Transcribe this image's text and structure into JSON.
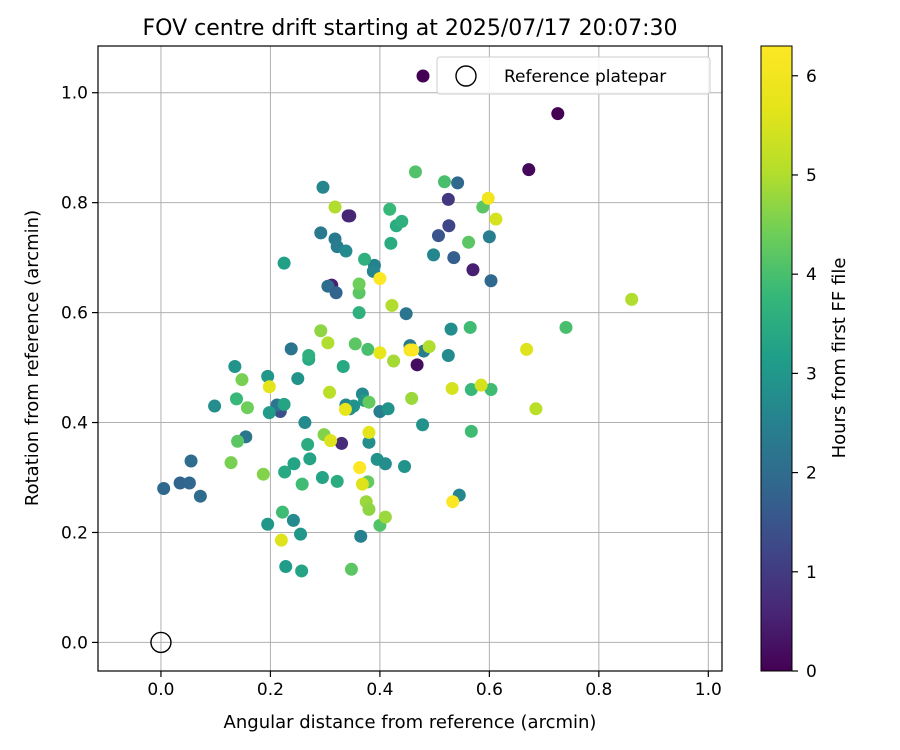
{
  "chart_data": {
    "type": "scatter",
    "title": "FOV centre drift starting at 2025/07/17 20:07:30",
    "xlabel": "Angular distance from reference (arcmin)",
    "ylabel": "Rotation from reference (arcmin)",
    "xlim": [
      -0.115,
      1.025
    ],
    "ylim": [
      -0.052,
      1.085
    ],
    "xticks": [
      0.0,
      0.2,
      0.4,
      0.6,
      0.8,
      1.0
    ],
    "xtick_labels": [
      "0.0",
      "0.2",
      "0.4",
      "0.6",
      "0.8",
      "1.0"
    ],
    "yticks": [
      0.0,
      0.2,
      0.4,
      0.6,
      0.8,
      1.0
    ],
    "ytick_labels": [
      "0.0",
      "0.2",
      "0.4",
      "0.6",
      "0.8",
      "1.0"
    ],
    "grid": true,
    "colormap": "viridis",
    "colorbar": {
      "label": "Hours from first FF file",
      "range": [
        0,
        6.3
      ],
      "ticks": [
        0,
        1,
        2,
        3,
        4,
        5,
        6
      ],
      "tick_labels": [
        "0",
        "1",
        "2",
        "3",
        "4",
        "5",
        "6"
      ]
    },
    "legend": {
      "position": "top-right",
      "entries": [
        {
          "marker": "filled-circle",
          "color": "#440154",
          "label": ""
        },
        {
          "marker": "hollow-circle",
          "color": "#000000",
          "label": "Reference platepar"
        }
      ]
    },
    "reference_point": {
      "x": 0.0,
      "y": 0.0,
      "label": "Reference platepar"
    },
    "points": [
      [
        0.725,
        0.962,
        0.0
      ],
      [
        0.672,
        0.86,
        0.1
      ],
      [
        0.345,
        0.776,
        0.7
      ],
      [
        0.342,
        0.776,
        0.6
      ],
      [
        0.525,
        0.806,
        0.9
      ],
      [
        0.312,
        0.65,
        0.5
      ],
      [
        0.57,
        0.678,
        0.5
      ],
      [
        0.468,
        0.505,
        0.2
      ],
      [
        0.33,
        0.362,
        0.7
      ],
      [
        0.218,
        0.42,
        1.4
      ],
      [
        0.526,
        0.758,
        1.2
      ],
      [
        0.507,
        0.74,
        1.5
      ],
      [
        0.535,
        0.7,
        1.7
      ],
      [
        0.542,
        0.836,
        1.9
      ],
      [
        0.305,
        0.648,
        2.0
      ],
      [
        0.32,
        0.636,
        1.8
      ],
      [
        0.603,
        0.658,
        1.9
      ],
      [
        0.6,
        0.738,
        2.4
      ],
      [
        0.005,
        0.28,
        1.9
      ],
      [
        0.035,
        0.29,
        1.8
      ],
      [
        0.052,
        0.29,
        1.9
      ],
      [
        0.055,
        0.33,
        2.0
      ],
      [
        0.072,
        0.266,
        2.0
      ],
      [
        0.155,
        0.374,
        2.2
      ],
      [
        0.238,
        0.534,
        2.2
      ],
      [
        0.212,
        0.432,
        2.2
      ],
      [
        0.292,
        0.745,
        2.3
      ],
      [
        0.318,
        0.734,
        2.3
      ],
      [
        0.296,
        0.828,
        2.6
      ],
      [
        0.322,
        0.72,
        2.4
      ],
      [
        0.338,
        0.712,
        2.7
      ],
      [
        0.39,
        0.686,
        2.5
      ],
      [
        0.388,
        0.675,
        2.6
      ],
      [
        0.448,
        0.598,
        2.2
      ],
      [
        0.455,
        0.54,
        2.3
      ],
      [
        0.48,
        0.53,
        2.4
      ],
      [
        0.498,
        0.705,
        2.6
      ],
      [
        0.525,
        0.522,
        2.7
      ],
      [
        0.53,
        0.57,
        2.8
      ],
      [
        0.365,
        0.193,
        2.5
      ],
      [
        0.545,
        0.268,
        2.6
      ],
      [
        0.242,
        0.222,
        2.7
      ],
      [
        0.263,
        0.4,
        2.7
      ],
      [
        0.38,
        0.364,
        2.8
      ],
      [
        0.395,
        0.333,
        2.9
      ],
      [
        0.4,
        0.42,
        2.4
      ],
      [
        0.41,
        0.325,
        2.8
      ],
      [
        0.415,
        0.425,
        2.9
      ],
      [
        0.445,
        0.32,
        2.9
      ],
      [
        0.478,
        0.396,
        2.9
      ],
      [
        0.338,
        0.432,
        2.6
      ],
      [
        0.345,
        0.425,
        2.8
      ],
      [
        0.352,
        0.43,
        2.9
      ],
      [
        0.368,
        0.452,
        2.7
      ],
      [
        0.372,
        0.44,
        3.0
      ],
      [
        0.25,
        0.48,
        2.9
      ],
      [
        0.098,
        0.43,
        2.8
      ],
      [
        0.135,
        0.502,
        2.9
      ],
      [
        0.195,
        0.484,
        3.0
      ],
      [
        0.198,
        0.418,
        3.1
      ],
      [
        0.225,
        0.433,
        3.3
      ],
      [
        0.195,
        0.215,
        3.0
      ],
      [
        0.228,
        0.138,
        3.1
      ],
      [
        0.255,
        0.197,
        3.0
      ],
      [
        0.257,
        0.13,
        3.3
      ],
      [
        0.225,
        0.69,
        3.2
      ],
      [
        0.243,
        0.325,
        3.3
      ],
      [
        0.226,
        0.31,
        3.4
      ],
      [
        0.272,
        0.334,
        3.3
      ],
      [
        0.268,
        0.36,
        3.5
      ],
      [
        0.27,
        0.515,
        3.4
      ],
      [
        0.27,
        0.522,
        3.6
      ],
      [
        0.295,
        0.3,
        3.3
      ],
      [
        0.322,
        0.293,
        3.5
      ],
      [
        0.333,
        0.502,
        3.4
      ],
      [
        0.362,
        0.6,
        3.6
      ],
      [
        0.372,
        0.697,
        3.6
      ],
      [
        0.42,
        0.726,
        3.5
      ],
      [
        0.43,
        0.758,
        3.5
      ],
      [
        0.44,
        0.766,
        3.6
      ],
      [
        0.418,
        0.788,
        3.8
      ],
      [
        0.518,
        0.838,
        4.0
      ],
      [
        0.465,
        0.856,
        4.1
      ],
      [
        0.562,
        0.728,
        4.2
      ],
      [
        0.565,
        0.573,
        3.9
      ],
      [
        0.567,
        0.46,
        3.8
      ],
      [
        0.603,
        0.46,
        3.9
      ],
      [
        0.567,
        0.384,
        3.9
      ],
      [
        0.74,
        0.573,
        4.0
      ],
      [
        0.588,
        0.792,
        4.2
      ],
      [
        0.258,
        0.288,
        3.9
      ],
      [
        0.222,
        0.237,
        3.9
      ],
      [
        0.348,
        0.133,
        4.2
      ],
      [
        0.4,
        0.213,
        4.1
      ],
      [
        0.378,
        0.533,
        4.0
      ],
      [
        0.362,
        0.636,
        4.2
      ],
      [
        0.362,
        0.652,
        4.4
      ],
      [
        0.355,
        0.543,
        4.2
      ],
      [
        0.38,
        0.437,
        4.3
      ],
      [
        0.378,
        0.292,
        4.3
      ],
      [
        0.138,
        0.443,
        3.8
      ],
      [
        0.14,
        0.366,
        4.2
      ],
      [
        0.128,
        0.327,
        4.5
      ],
      [
        0.158,
        0.427,
        4.4
      ],
      [
        0.148,
        0.478,
        4.5
      ],
      [
        0.187,
        0.306,
        4.6
      ],
      [
        0.292,
        0.567,
        4.7
      ],
      [
        0.298,
        0.378,
        4.6
      ],
      [
        0.375,
        0.256,
        4.8
      ],
      [
        0.38,
        0.242,
        4.7
      ],
      [
        0.41,
        0.228,
        4.8
      ],
      [
        0.425,
        0.512,
        4.9
      ],
      [
        0.422,
        0.613,
        5.0
      ],
      [
        0.458,
        0.444,
        4.8
      ],
      [
        0.49,
        0.538,
        5.0
      ],
      [
        0.318,
        0.792,
        5.0
      ],
      [
        0.305,
        0.545,
        5.0
      ],
      [
        0.308,
        0.455,
        5.1
      ],
      [
        0.86,
        0.624,
        5.0
      ],
      [
        0.685,
        0.425,
        5.1
      ],
      [
        0.612,
        0.77,
        5.5
      ],
      [
        0.585,
        0.468,
        5.5
      ],
      [
        0.532,
        0.462,
        5.5
      ],
      [
        0.668,
        0.533,
        5.6
      ],
      [
        0.22,
        0.186,
        5.6
      ],
      [
        0.198,
        0.465,
        5.7
      ],
      [
        0.31,
        0.367,
        5.6
      ],
      [
        0.337,
        0.424,
        5.8
      ],
      [
        0.368,
        0.288,
        5.6
      ],
      [
        0.38,
        0.382,
        5.7
      ],
      [
        0.4,
        0.527,
        5.8
      ],
      [
        0.455,
        0.532,
        6.1
      ],
      [
        0.598,
        0.808,
        6.0
      ],
      [
        0.363,
        0.318,
        6.3
      ],
      [
        0.4,
        0.662,
        6.3
      ],
      [
        0.533,
        0.256,
        6.3
      ],
      [
        0.46,
        0.532,
        6.3
      ]
    ]
  }
}
